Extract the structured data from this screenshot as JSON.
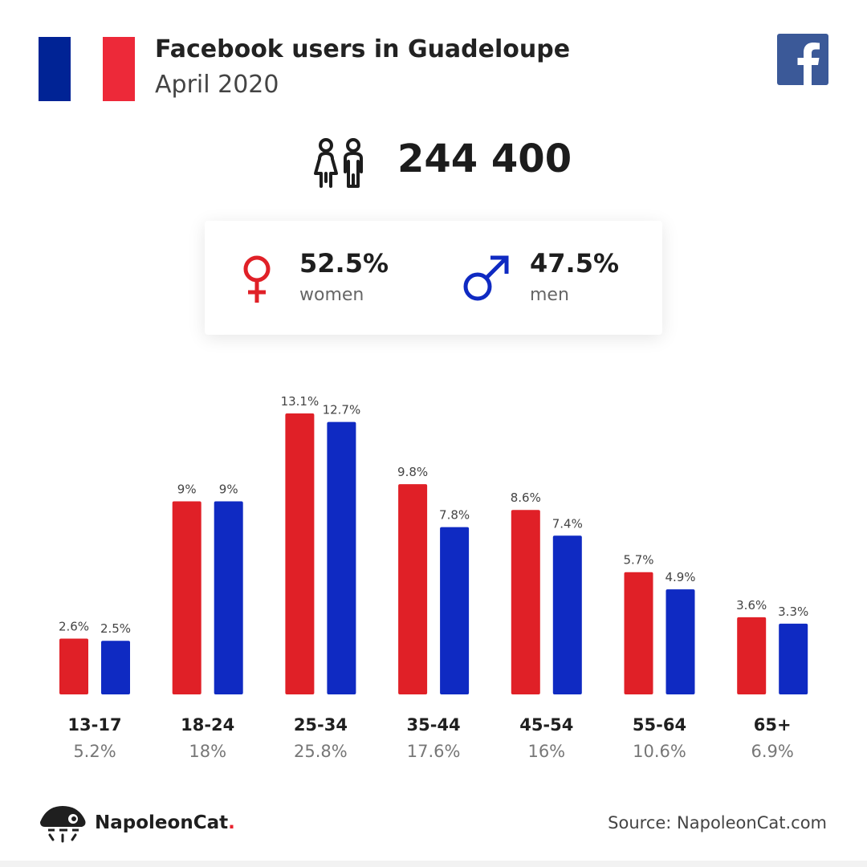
{
  "header": {
    "title": "Facebook users in Guadeloupe",
    "subtitle": "April 2020"
  },
  "flag": {
    "colors": [
      "#002395",
      "#ffffff",
      "#ED2939"
    ],
    "icon": "france-flag-icon"
  },
  "logo": {
    "icon": "facebook-icon",
    "color": "#3b5998"
  },
  "total_users": {
    "icon": "users-icon",
    "value": "244 400"
  },
  "gender": {
    "women": {
      "value": "52.5%",
      "label": "women",
      "icon": "female-symbol-icon",
      "color": "#e02027"
    },
    "men": {
      "value": "47.5%",
      "label": "men",
      "icon": "male-symbol-icon",
      "color": "#0f2ac2"
    }
  },
  "chart_data": {
    "type": "bar",
    "categories": [
      "13-17",
      "18-24",
      "25-34",
      "35-44",
      "45-54",
      "55-64",
      "65+"
    ],
    "category_totals": [
      "5.2%",
      "18%",
      "25.8%",
      "17.6%",
      "16%",
      "10.6%",
      "6.9%"
    ],
    "series": [
      {
        "values": [
          2.6,
          9,
          13.1,
          9.8,
          8.6,
          5.7,
          3.6
        ],
        "labels": [
          "2.6%",
          "9%",
          "13.1%",
          "9.8%",
          "8.6%",
          "5.7%",
          "3.6%"
        ],
        "color": "#e02027"
      },
      {
        "values": [
          2.5,
          9,
          12.7,
          7.8,
          7.4,
          4.9,
          3.3
        ],
        "labels": [
          "2.5%",
          "9%",
          "12.7%",
          "7.8%",
          "7.4%",
          "4.9%",
          "3.3%"
        ],
        "color": "#0f2ac2"
      }
    ],
    "ylim": [
      0,
      13.1
    ],
    "grid": false,
    "legend": "none"
  },
  "footer": {
    "brand": "NapoleonCat",
    "brand_dot": ".",
    "brand_icon": "napoleoncat-logo-icon",
    "source": "Source: NapoleonCat.com"
  }
}
